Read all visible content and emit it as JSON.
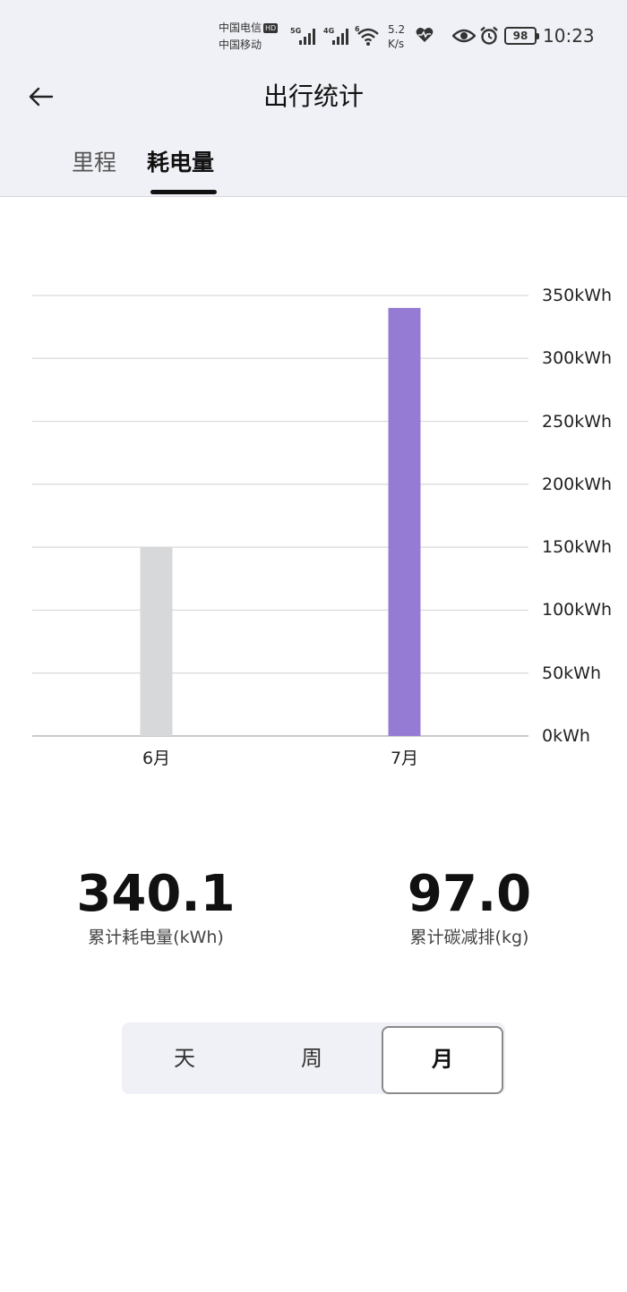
{
  "status_bar": {
    "carrier_1": "中国电信",
    "carrier_1_badge": "HD",
    "carrier_2": "中国移动",
    "signal_1_tag": "5G",
    "signal_2_tag": "4G",
    "wifi_tag": "6",
    "net_speed_value": "5.2",
    "net_speed_unit": "K/s",
    "battery": "98",
    "time": "10:23",
    "icons": [
      "signal-icon",
      "wifi-icon",
      "heart-icon",
      "eye-icon",
      "alarm-icon",
      "battery-icon"
    ]
  },
  "header": {
    "title": "出行统计",
    "back_icon": "arrow-left-icon",
    "tabs": [
      {
        "label": "里程",
        "active": false
      },
      {
        "label": "耗电量",
        "active": true
      }
    ]
  },
  "chart_data": {
    "type": "bar",
    "categories": [
      "6月",
      "7月"
    ],
    "values": [
      150,
      340.1
    ],
    "ylim": [
      0,
      350
    ],
    "yticks": [
      "0kWh",
      "50kWh",
      "100kWh",
      "150kWh",
      "200kWh",
      "250kWh",
      "300kWh",
      "350kWh"
    ],
    "title": "",
    "xlabel": "",
    "ylabel": "",
    "grid": true,
    "axis_position": "right",
    "bar_colors": [
      "#d7d8da",
      "#957bd3"
    ]
  },
  "stats": {
    "total_energy": {
      "value": "340.1",
      "label": "累计耗电量(kWh)"
    },
    "carbon_reduction": {
      "value": "97.0",
      "label": "累计碳减排(kg)"
    }
  },
  "period": {
    "options": [
      "天",
      "周",
      "月"
    ],
    "selected": "月"
  }
}
